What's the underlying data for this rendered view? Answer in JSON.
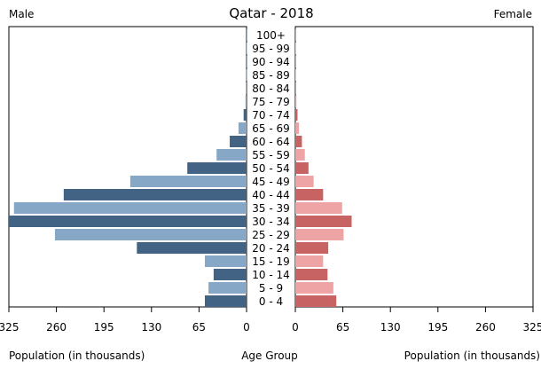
{
  "chart_data": {
    "type": "bar",
    "title": "Qatar - 2018",
    "left_label": "Male",
    "right_label": "Female",
    "xlabel_left": "Population (in thousands)",
    "xlabel_center": "Age Group",
    "xlabel_right": "Population (in thousands)",
    "xlim": [
      0,
      325
    ],
    "xticks": [
      "325",
      "260",
      "195",
      "130",
      "65",
      "0"
    ],
    "xticks_right": [
      "0",
      "65",
      "130",
      "195",
      "260",
      "325"
    ],
    "categories": [
      "100+",
      "95 - 99",
      "90 - 94",
      "85 - 89",
      "80 - 84",
      "75 - 79",
      "70 - 74",
      "65 - 69",
      "60 - 64",
      "55 - 59",
      "50 - 54",
      "45 - 49",
      "40 - 44",
      "35 - 39",
      "30 - 34",
      "25 - 29",
      "20 - 24",
      "15 - 19",
      "10 - 14",
      "5 - 9",
      "0 - 4"
    ],
    "series": [
      {
        "name": "Male",
        "values": [
          0.1,
          0.1,
          0.2,
          0.3,
          0.6,
          1.5,
          4,
          11,
          23,
          41,
          81,
          159,
          250,
          318,
          325,
          262,
          150,
          57,
          45,
          52,
          57
        ]
      },
      {
        "name": "Female",
        "values": [
          0.1,
          0.1,
          0.2,
          0.4,
          0.8,
          1.5,
          3,
          5,
          9,
          13,
          18,
          25,
          38,
          64,
          77,
          66,
          45,
          38,
          44,
          52,
          56
        ]
      }
    ],
    "colors": {
      "male_dark": "#436384",
      "male_light": "#87a7c7",
      "female_dark": "#c86363",
      "female_light": "#eea4a4"
    }
  }
}
